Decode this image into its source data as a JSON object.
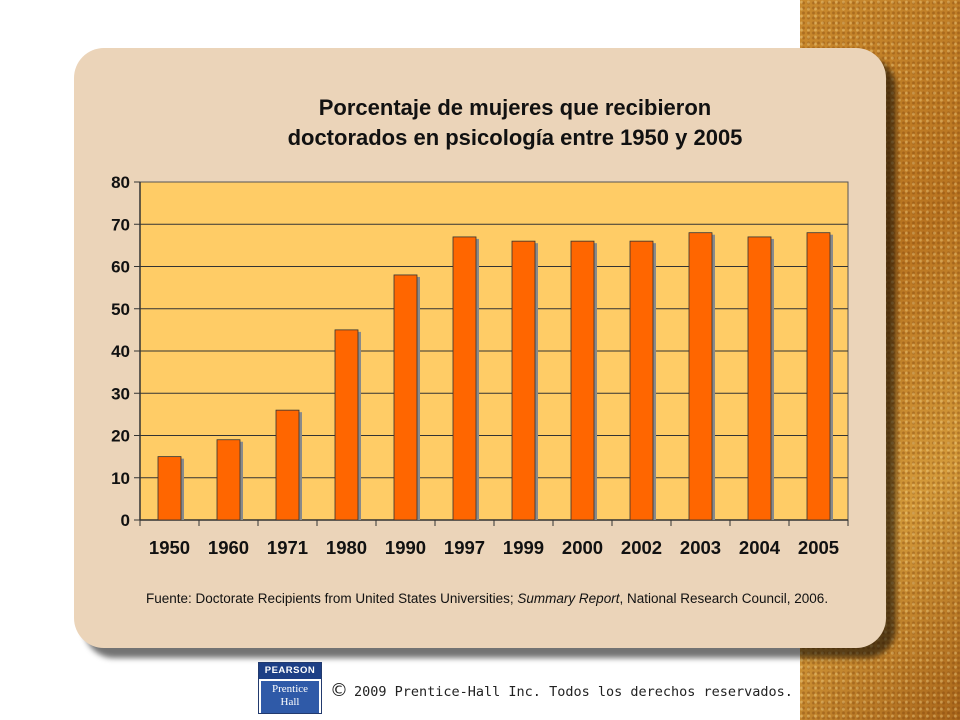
{
  "chart_data": {
    "type": "bar",
    "title_line1": "Porcentaje de mujeres que recibieron",
    "title_line2": "doctorados en psicología entre 1950 y 2005",
    "categories": [
      "1950",
      "1960",
      "1971",
      "1980",
      "1990",
      "1997",
      "1999",
      "2000",
      "2002",
      "2003",
      "2004",
      "2005"
    ],
    "values": [
      15,
      19,
      26,
      45,
      58,
      67,
      66,
      66,
      66,
      68,
      67,
      68
    ],
    "yticks": [
      0,
      10,
      20,
      30,
      40,
      50,
      60,
      70,
      80
    ],
    "ylim": [
      0,
      80
    ],
    "grid": true,
    "bar_color": "#ff6600",
    "plot_bg": "#ffcc66"
  },
  "source": {
    "prefix": "Fuente: Doctorate Recipients  from United States Universities; ",
    "italic": "Summary Report",
    "suffix": ", National Research Council, 2006."
  },
  "footer": {
    "logo_top": "PEARSON",
    "logo_line1": "Prentice",
    "logo_line2": "Hall",
    "copyright_symbol": "©",
    "copyright_text": "2009 Prentice-Hall Inc. Todos los derechos reservados."
  }
}
